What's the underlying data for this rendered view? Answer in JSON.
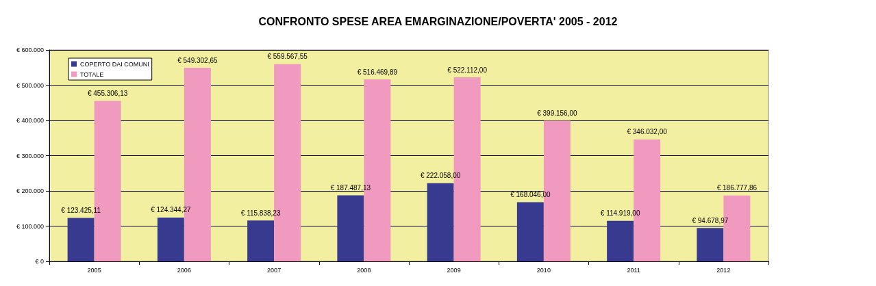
{
  "chart_data": {
    "type": "bar",
    "title": "CONFRONTO SPESE AREA EMARGINAZIONE/POVERTA' 2005 - 2012",
    "categories": [
      "2005",
      "2006",
      "2007",
      "2008",
      "2009",
      "2010",
      "2011",
      "2012"
    ],
    "series": [
      {
        "name": "COPERTO DAI COMUNI",
        "color": "#373a8f",
        "values": [
          123425.11,
          124344.27,
          115838.23,
          187487.13,
          222058.0,
          168046.0,
          114919.0,
          94678.97
        ],
        "value_labels": [
          "€ 123.425,11",
          "€ 124.344,27",
          "€ 115.838,23",
          "€ 187.487,13",
          "€ 222.058,00",
          "€ 168.046,00",
          "€ 114.919,00",
          "€ 94.678,97"
        ]
      },
      {
        "name": "TOTALE",
        "color": "#f09ac0",
        "values": [
          455306.13,
          549302.65,
          559567.55,
          516469.89,
          522112.0,
          399156.0,
          346032.0,
          186777.86
        ],
        "value_labels": [
          "€ 455.306,13",
          "€ 549.302,65",
          "€ 559.567,55",
          "€ 516.469,89",
          "€ 522.112,00",
          "€ 399.156,00",
          "€ 346.032,00",
          "€ 186.777,86"
        ]
      }
    ],
    "ylim": [
      0,
      600000
    ],
    "yticks": [
      {
        "value": 0,
        "label": "€ 0"
      },
      {
        "value": 100000,
        "label": "€ 100.000"
      },
      {
        "value": 200000,
        "label": "€ 200.000"
      },
      {
        "value": 300000,
        "label": "€ 300.000"
      },
      {
        "value": 400000,
        "label": "€ 400.000"
      },
      {
        "value": 500000,
        "label": "€ 500.000"
      },
      {
        "value": 600000,
        "label": "€ 600.000"
      }
    ],
    "grid": "y",
    "legend": "top left"
  }
}
